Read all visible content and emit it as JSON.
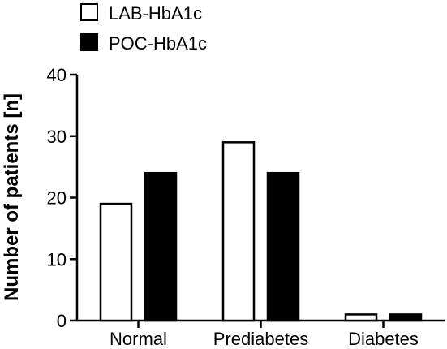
{
  "chart_data": {
    "type": "bar",
    "title": "",
    "xlabel": "",
    "ylabel": "Number of patients [n]",
    "ylim": [
      0,
      40
    ],
    "yticks": [
      0,
      10,
      20,
      30,
      40
    ],
    "grid": false,
    "legend_position": "top-left",
    "categories": [
      "Normal",
      "Prediabetes",
      "Diabetes"
    ],
    "series": [
      {
        "name": "LAB-HbA1c",
        "values": [
          19,
          29,
          1
        ],
        "fill": "#ffffff"
      },
      {
        "name": "POC-HbA1c",
        "values": [
          24,
          24,
          1
        ],
        "fill": "#000000"
      }
    ]
  }
}
